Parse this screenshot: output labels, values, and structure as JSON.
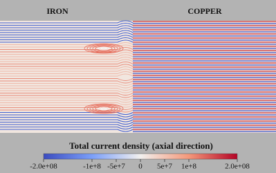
{
  "labels": {
    "iron": "IRON",
    "copper": "COPPER"
  },
  "colorbar": {
    "title": "Total current density (axial direction)",
    "range": [
      -200000000,
      200000000
    ],
    "ticks": [
      {
        "value": -200000000,
        "label": "-2.0e+08"
      },
      {
        "value": -100000000,
        "label": "-1e+8"
      },
      {
        "value": -50000000,
        "label": "-5e+7"
      },
      0,
      {
        "value": 50000000,
        "label": "5e+7"
      },
      {
        "value": 100000000,
        "label": "1e+8"
      },
      {
        "value": 200000000,
        "label": "2.0e+08"
      }
    ]
  }
}
